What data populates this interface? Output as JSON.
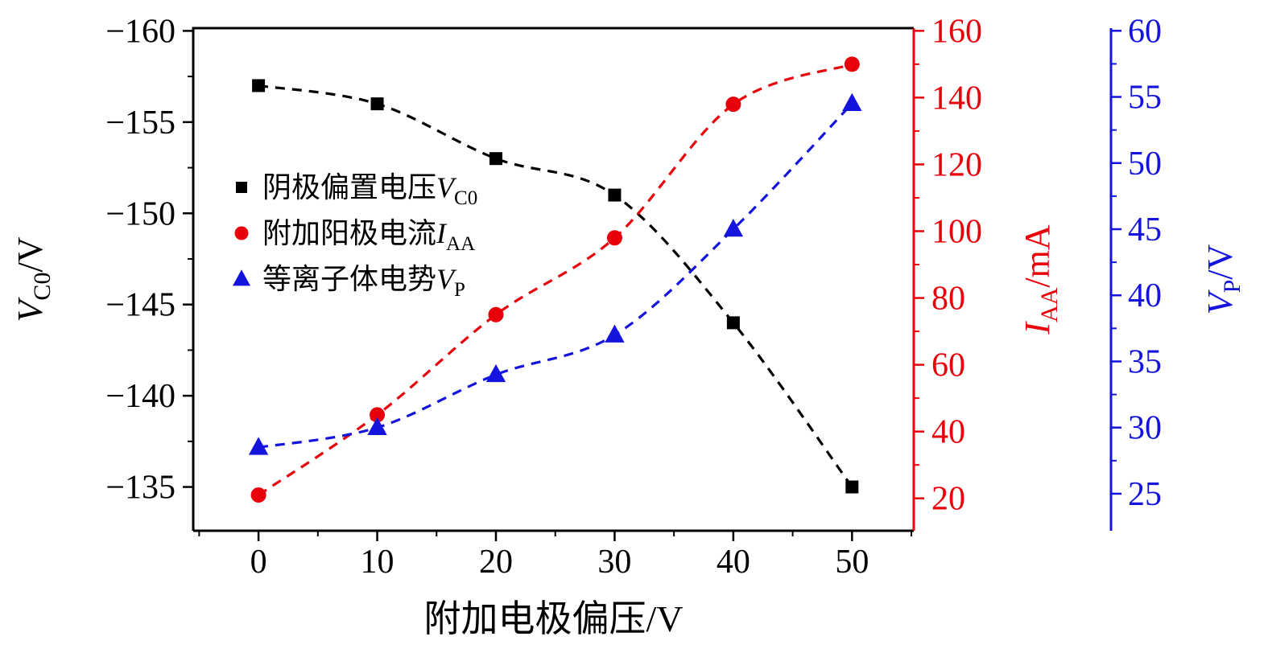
{
  "chart_data": {
    "type": "scatter",
    "title": "",
    "x": [
      0,
      10,
      20,
      30,
      40,
      50
    ],
    "x_axis": {
      "label": "附加电极偏压/V",
      "ticks": [
        0,
        10,
        20,
        30,
        40,
        50
      ],
      "minor_step": 5,
      "range": [
        -5.5,
        55.2
      ]
    },
    "axes": {
      "left": {
        "var": "V",
        "sub": "C0",
        "unit": "/V",
        "color": "#000000",
        "ticks": [
          -160,
          -155,
          -150,
          -145,
          -140,
          -135
        ],
        "minor_step": 2.5,
        "top_value": -160.15,
        "bottom_value": -132.6,
        "range": [
          -160,
          -135
        ],
        "inverted": true
      },
      "right1": {
        "var": "I",
        "sub": "AA",
        "unit": "/mA",
        "color": "#e8000a",
        "ticks": [
          160,
          140,
          120,
          100,
          80,
          60,
          40,
          20
        ],
        "minor_step": 10,
        "top_value": 160.8,
        "bottom_value": 10.3,
        "range": [
          20,
          160
        ]
      },
      "right2": {
        "var": "V",
        "sub": "P",
        "unit": "/V",
        "color": "#1414dc",
        "ticks": [
          60,
          55,
          50,
          45,
          40,
          35,
          30,
          25
        ],
        "minor_step": 2.5,
        "top_value": 60.2,
        "bottom_value": 22.2,
        "range": [
          25,
          60
        ]
      }
    },
    "series": [
      {
        "name": "阴极偏置电压V_C0",
        "legend": {
          "text": "阴极偏置电压",
          "var": "V",
          "sub": "C0"
        },
        "marker": "square",
        "color": "#000000",
        "axis": "left",
        "line": "dashed",
        "values": [
          -157,
          -156,
          -153,
          -151,
          -144,
          -135
        ]
      },
      {
        "name": "附加阳极电流I_AA",
        "legend": {
          "text": "附加阳极电流",
          "var": "I",
          "sub": "AA"
        },
        "marker": "circle",
        "color": "#e8000a",
        "axis": "right1",
        "line": "dashed",
        "values": [
          21,
          45,
          75,
          98,
          138,
          150
        ]
      },
      {
        "name": "等离子体体电势V_P",
        "legend": {
          "text": "等离子体电势",
          "var": "V",
          "sub": "P"
        },
        "marker": "triangle",
        "color": "#1414dc",
        "axis": "right2",
        "line": "dashed",
        "values": [
          28.5,
          30,
          34,
          37,
          45,
          54.5
        ]
      }
    ],
    "legend_position": "upper-left-inside",
    "grid": false,
    "background": "#ffffff"
  }
}
